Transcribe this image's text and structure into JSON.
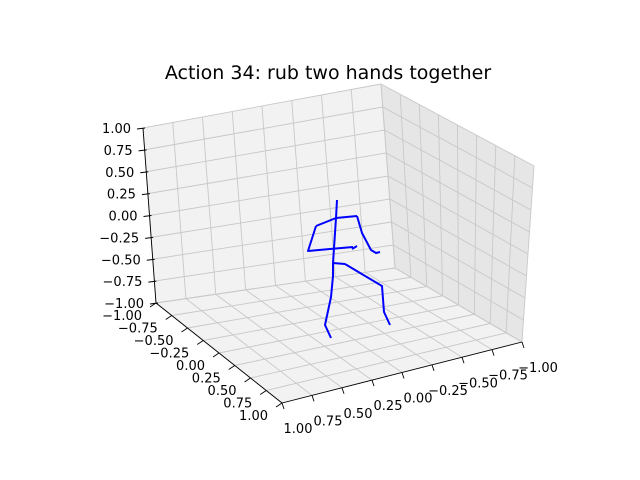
{
  "chart_data": {
    "type": "3d-skeleton",
    "title": "Action 34: rub two hands together",
    "axes": {
      "x": {
        "range": [
          1.0,
          -1.0
        ],
        "ticks": [
          "1.00",
          "0.75",
          "0.50",
          "0.25",
          "0.00",
          "−0.25",
          "−0.50",
          "−0.75",
          "−1.00"
        ]
      },
      "y": {
        "range": [
          -1.0,
          1.0
        ],
        "ticks": [
          "−1.00",
          "−0.75",
          "−0.50",
          "−0.25",
          "0.00",
          "0.25",
          "0.50",
          "0.75",
          "1.00"
        ]
      },
      "z": {
        "range": [
          -1.0,
          1.0
        ],
        "ticks": [
          "−1.00",
          "−0.75",
          "−0.50",
          "−0.25",
          "0.00",
          "0.25",
          "0.50",
          "0.75",
          "1.00"
        ]
      }
    },
    "grid": true,
    "line_color": "#0000ff",
    "skeleton_segments": [
      {
        "name": "head-neck",
        "points": [
          [
            337,
            200
          ],
          [
            336,
            218
          ]
        ]
      },
      {
        "name": "shoulders",
        "points": [
          [
            316,
            226
          ],
          [
            336,
            218
          ],
          [
            357,
            216
          ]
        ]
      },
      {
        "name": "spine",
        "points": [
          [
            336,
            218
          ],
          [
            334,
            248
          ],
          [
            333,
            263
          ]
        ]
      },
      {
        "name": "left-arm",
        "points": [
          [
            316,
            226
          ],
          [
            308,
            251
          ],
          [
            330,
            249
          ],
          [
            353,
            247
          ]
        ]
      },
      {
        "name": "right-arm",
        "points": [
          [
            357,
            216
          ],
          [
            362,
            233
          ],
          [
            371,
            250
          ],
          [
            376,
            253
          ],
          [
            380,
            252
          ]
        ]
      },
      {
        "name": "right-hand-tip",
        "points": [
          [
            352,
            249
          ],
          [
            357,
            246
          ]
        ]
      },
      {
        "name": "hips",
        "points": [
          [
            333,
            263
          ],
          [
            345,
            264
          ]
        ]
      },
      {
        "name": "left-leg",
        "points": [
          [
            333,
            263
          ],
          [
            333,
            276
          ],
          [
            331,
            297
          ],
          [
            325,
            325
          ],
          [
            331,
            338
          ]
        ]
      },
      {
        "name": "right-leg",
        "points": [
          [
            345,
            264
          ],
          [
            382,
            286
          ],
          [
            384,
            312
          ],
          [
            390,
            325
          ]
        ]
      }
    ]
  }
}
